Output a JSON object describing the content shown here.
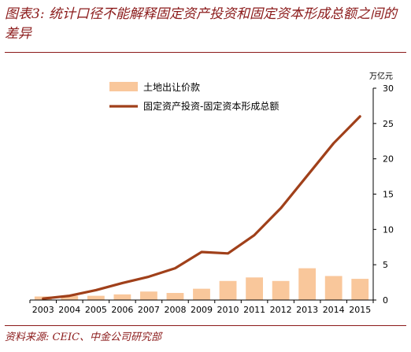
{
  "figure": {
    "title": "图表3: 统计口径不能解释固定资产投资和固定资本形成总额之间的差异",
    "source": "资料来源: CEIC、中金公司研究部"
  },
  "chart_data": {
    "type": "bar",
    "categories": [
      "2003",
      "2004",
      "2005",
      "2006",
      "2007",
      "2008",
      "2009",
      "2010",
      "2011",
      "2012",
      "2013",
      "2014",
      "2015"
    ],
    "y_unit": "万亿元",
    "ylim": [
      0,
      30
    ],
    "yticks": [
      0,
      5,
      10,
      15,
      20,
      25,
      30
    ],
    "y_axis_side": "right",
    "grid": false,
    "legend_position": "top-left",
    "series": [
      {
        "name": "土地出让价款",
        "type": "bar",
        "color": "#F9C79B",
        "values": [
          0.5,
          0.6,
          0.6,
          0.8,
          1.2,
          1.0,
          1.6,
          2.7,
          3.2,
          2.7,
          4.5,
          3.4,
          3.0
        ]
      },
      {
        "name": "固定资产投资-固定资本形成总额",
        "type": "line",
        "color": "#A0401A",
        "values": [
          0.2,
          0.6,
          1.4,
          2.4,
          3.3,
          4.5,
          6.8,
          6.6,
          9.2,
          13.0,
          17.6,
          22.2,
          26.0
        ]
      }
    ]
  }
}
